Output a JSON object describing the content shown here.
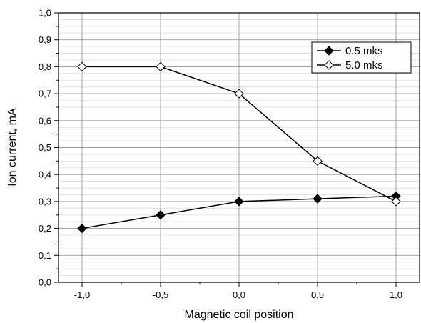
{
  "chart_data": {
    "type": "line",
    "xlabel": "Magnetic coil position",
    "ylabel": "Ion current, mA",
    "x": [
      -1.0,
      -0.5,
      0.0,
      0.5,
      1.0
    ],
    "x_tick_labels": [
      "-1,0",
      "-0,5",
      "0,0",
      "0,5",
      "1,0"
    ],
    "xlim": [
      -1.15,
      1.15
    ],
    "ylim": [
      0.0,
      1.0
    ],
    "y_tick_labels": [
      "0,0",
      "0,1",
      "0,2",
      "0,3",
      "0,4",
      "0,5",
      "0,6",
      "0,7",
      "0,8",
      "0,9",
      "1,0"
    ],
    "grid": true,
    "legend_position": "top-right",
    "series": [
      {
        "name": "0.5 mks",
        "marker": "filled-diamond",
        "color": "#000000",
        "values": [
          0.2,
          0.25,
          0.3,
          0.31,
          0.32
        ]
      },
      {
        "name": "5.0 mks",
        "marker": "open-diamond",
        "color": "#000000",
        "values": [
          0.8,
          0.8,
          0.7,
          0.45,
          0.3
        ]
      }
    ]
  }
}
